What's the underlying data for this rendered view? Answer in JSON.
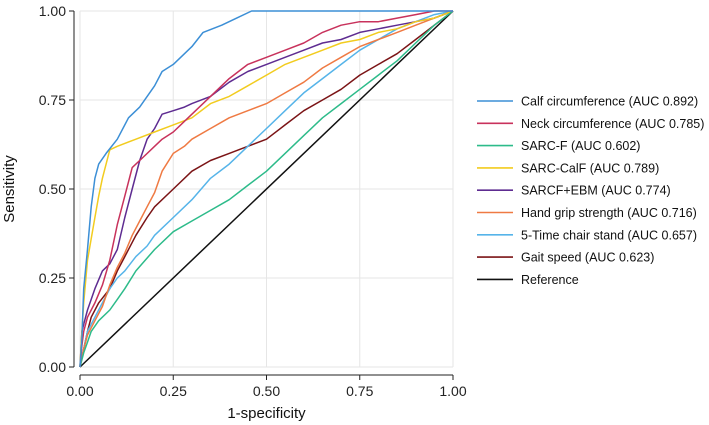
{
  "chart_data": {
    "type": "line",
    "title": "",
    "xlabel": "1-specificity",
    "ylabel": "Sensitivity",
    "xlim": [
      0,
      1
    ],
    "ylim": [
      0,
      1
    ],
    "xticks": [
      0,
      0.25,
      0.5,
      0.75,
      1
    ],
    "yticks": [
      0,
      0.25,
      0.5,
      0.75,
      1
    ],
    "xtick_labels": [
      "0.00",
      "0.25",
      "0.50",
      "0.75",
      "1.00"
    ],
    "ytick_labels": [
      "0.00",
      "0.25",
      "0.50",
      "0.75",
      "1.00"
    ],
    "grid": true,
    "legend_position": "right",
    "series": [
      {
        "name": "Calf circumference (AUC 0.892)",
        "color": "#3c8fd6",
        "x": [
          0,
          0.005,
          0.01,
          0.02,
          0.03,
          0.04,
          0.05,
          0.07,
          0.1,
          0.13,
          0.16,
          0.2,
          0.22,
          0.25,
          0.3,
          0.33,
          0.38,
          0.42,
          0.46,
          0.5,
          0.6,
          0.8,
          1.0
        ],
        "y": [
          0,
          0.08,
          0.22,
          0.33,
          0.45,
          0.53,
          0.57,
          0.6,
          0.64,
          0.7,
          0.73,
          0.79,
          0.83,
          0.85,
          0.9,
          0.94,
          0.96,
          0.98,
          1.0,
          1.0,
          1.0,
          1.0,
          1.0
        ]
      },
      {
        "name": "Neck circumference (AUC 0.785)",
        "color": "#c8325c",
        "x": [
          0,
          0.005,
          0.01,
          0.02,
          0.04,
          0.06,
          0.08,
          0.1,
          0.12,
          0.14,
          0.17,
          0.2,
          0.22,
          0.25,
          0.3,
          0.35,
          0.4,
          0.45,
          0.5,
          0.55,
          0.6,
          0.65,
          0.7,
          0.75,
          0.8,
          0.85,
          0.9,
          0.95,
          1.0
        ],
        "y": [
          0,
          0.06,
          0.1,
          0.14,
          0.18,
          0.23,
          0.3,
          0.4,
          0.48,
          0.56,
          0.59,
          0.62,
          0.64,
          0.66,
          0.71,
          0.76,
          0.81,
          0.85,
          0.87,
          0.89,
          0.91,
          0.94,
          0.96,
          0.97,
          0.97,
          0.98,
          0.99,
          1.0,
          1.0
        ]
      },
      {
        "name": "SARC-F (AUC 0.602)",
        "color": "#2dbb8a",
        "x": [
          0,
          0.01,
          0.02,
          0.03,
          0.05,
          0.08,
          0.1,
          0.12,
          0.15,
          0.2,
          0.25,
          0.3,
          0.35,
          0.4,
          0.45,
          0.5,
          0.55,
          0.6,
          0.65,
          0.7,
          0.75,
          0.8,
          0.85,
          0.9,
          0.95,
          1.0
        ],
        "y": [
          0,
          0.04,
          0.07,
          0.1,
          0.13,
          0.16,
          0.19,
          0.22,
          0.27,
          0.33,
          0.38,
          0.41,
          0.44,
          0.47,
          0.51,
          0.55,
          0.6,
          0.65,
          0.7,
          0.74,
          0.78,
          0.82,
          0.86,
          0.91,
          0.96,
          1.0
        ]
      },
      {
        "name": "SARC-CalF (AUC 0.789)",
        "color": "#f2cc1f",
        "x": [
          0,
          0.005,
          0.01,
          0.02,
          0.03,
          0.04,
          0.05,
          0.06,
          0.07,
          0.08,
          0.1,
          0.15,
          0.2,
          0.25,
          0.3,
          0.35,
          0.4,
          0.45,
          0.5,
          0.55,
          0.6,
          0.65,
          0.7,
          0.75,
          0.8,
          0.85,
          0.9,
          0.95,
          1.0
        ],
        "y": [
          0,
          0.1,
          0.18,
          0.3,
          0.36,
          0.42,
          0.48,
          0.53,
          0.57,
          0.61,
          0.62,
          0.64,
          0.66,
          0.68,
          0.7,
          0.74,
          0.76,
          0.79,
          0.82,
          0.85,
          0.87,
          0.89,
          0.91,
          0.92,
          0.94,
          0.95,
          0.97,
          0.98,
          1.0
        ]
      },
      {
        "name": "SARCF+EBM (AUC 0.774)",
        "color": "#5e2c91",
        "x": [
          0,
          0.005,
          0.01,
          0.02,
          0.04,
          0.06,
          0.08,
          0.1,
          0.12,
          0.14,
          0.16,
          0.18,
          0.2,
          0.22,
          0.25,
          0.28,
          0.3,
          0.35,
          0.4,
          0.45,
          0.5,
          0.55,
          0.6,
          0.65,
          0.7,
          0.75,
          0.8,
          0.85,
          0.9,
          0.95,
          1.0
        ],
        "y": [
          0,
          0.1,
          0.12,
          0.16,
          0.22,
          0.27,
          0.29,
          0.33,
          0.42,
          0.5,
          0.58,
          0.64,
          0.67,
          0.71,
          0.72,
          0.73,
          0.74,
          0.76,
          0.8,
          0.83,
          0.85,
          0.87,
          0.89,
          0.91,
          0.92,
          0.94,
          0.95,
          0.96,
          0.97,
          0.98,
          1.0
        ]
      },
      {
        "name": "Hand grip strength (AUC 0.716)",
        "color": "#ef7a43",
        "x": [
          0,
          0.01,
          0.02,
          0.04,
          0.06,
          0.08,
          0.1,
          0.12,
          0.14,
          0.16,
          0.18,
          0.2,
          0.22,
          0.25,
          0.28,
          0.3,
          0.35,
          0.4,
          0.45,
          0.5,
          0.55,
          0.6,
          0.65,
          0.7,
          0.75,
          0.8,
          0.85,
          0.9,
          0.95,
          1.0
        ],
        "y": [
          0,
          0.05,
          0.09,
          0.13,
          0.17,
          0.23,
          0.28,
          0.32,
          0.37,
          0.41,
          0.45,
          0.49,
          0.55,
          0.6,
          0.62,
          0.64,
          0.67,
          0.7,
          0.72,
          0.74,
          0.77,
          0.8,
          0.84,
          0.87,
          0.9,
          0.92,
          0.94,
          0.96,
          0.98,
          1.0
        ]
      },
      {
        "name": "5-Time chair stand (AUC 0.657)",
        "color": "#56b4e9",
        "x": [
          0,
          0.01,
          0.02,
          0.04,
          0.06,
          0.08,
          0.1,
          0.12,
          0.15,
          0.18,
          0.2,
          0.25,
          0.3,
          0.35,
          0.4,
          0.45,
          0.5,
          0.55,
          0.6,
          0.65,
          0.7,
          0.75,
          0.8,
          0.85,
          0.9,
          0.95,
          1.0
        ],
        "y": [
          0,
          0.05,
          0.1,
          0.14,
          0.18,
          0.22,
          0.25,
          0.27,
          0.31,
          0.34,
          0.37,
          0.42,
          0.47,
          0.53,
          0.57,
          0.62,
          0.67,
          0.72,
          0.77,
          0.81,
          0.85,
          0.89,
          0.92,
          0.95,
          0.97,
          0.99,
          1.0
        ]
      },
      {
        "name": "Gait speed  (AUC 0.623)",
        "color": "#7b1416",
        "x": [
          0,
          0.01,
          0.02,
          0.03,
          0.05,
          0.08,
          0.1,
          0.12,
          0.15,
          0.18,
          0.2,
          0.25,
          0.3,
          0.35,
          0.4,
          0.45,
          0.5,
          0.55,
          0.6,
          0.65,
          0.7,
          0.75,
          0.8,
          0.85,
          0.9,
          0.95,
          1.0
        ],
        "y": [
          0,
          0.05,
          0.1,
          0.14,
          0.18,
          0.22,
          0.27,
          0.31,
          0.37,
          0.42,
          0.45,
          0.5,
          0.55,
          0.58,
          0.6,
          0.62,
          0.64,
          0.68,
          0.72,
          0.75,
          0.78,
          0.82,
          0.85,
          0.88,
          0.92,
          0.96,
          1.0
        ]
      },
      {
        "name": "Reference",
        "color": "#111111",
        "x": [
          0,
          1
        ],
        "y": [
          0,
          1
        ]
      }
    ]
  }
}
